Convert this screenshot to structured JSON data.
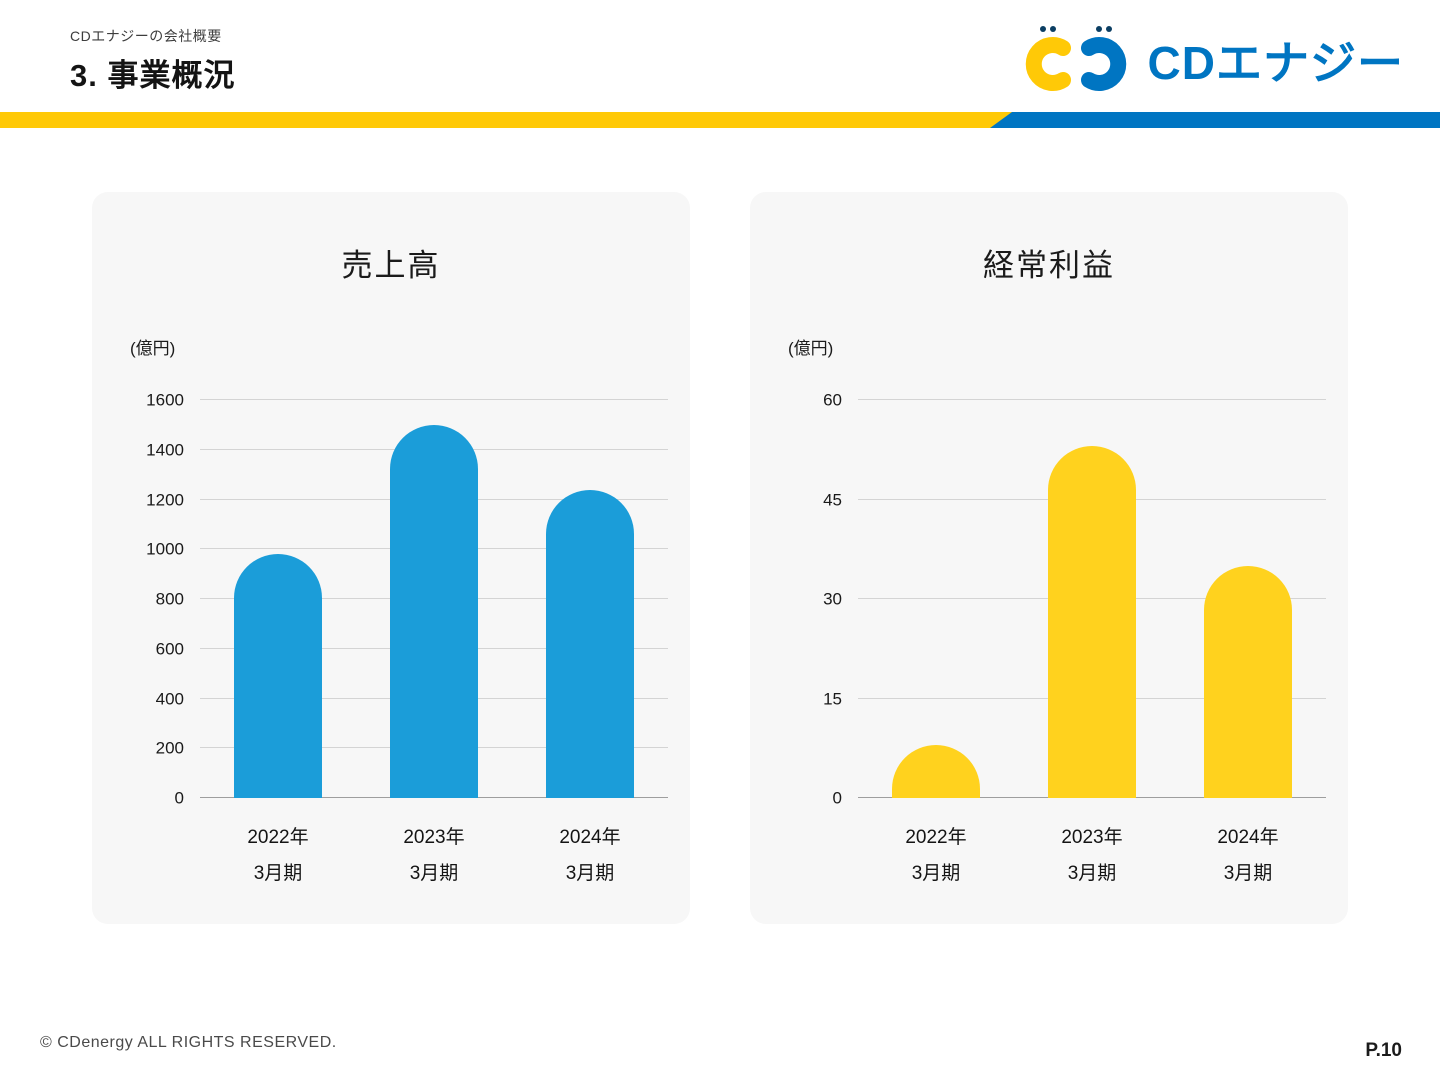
{
  "header": {
    "eyebrow": "CDエナジーの会社概要",
    "title": "3. 事業概況",
    "logo_text": "CDエナジー"
  },
  "footer": {
    "copyright": "© CDenergy ALL RIGHTS RESERVED.",
    "page_number": "P.10"
  },
  "colors": {
    "band_yellow": "#FFC907",
    "band_blue": "#0075C2",
    "bar_blue": "#1B9DD9",
    "bar_yellow": "#FFD21E",
    "card_bg": "#F7F7F7"
  },
  "chart_data": [
    {
      "type": "bar",
      "title": "売上高",
      "unit_label": "(億円)",
      "categories": [
        {
          "year": "2022年",
          "period": "3月期"
        },
        {
          "year": "2023年",
          "period": "3月期"
        },
        {
          "year": "2024年",
          "period": "3月期"
        }
      ],
      "values": [
        980,
        1500,
        1240
      ],
      "ylim": [
        0,
        1600
      ],
      "ytick_step": 200,
      "bar_color": "#1B9DD9",
      "legend": "none",
      "grid": "horizontal"
    },
    {
      "type": "bar",
      "title": "経常利益",
      "unit_label": "(億円)",
      "categories": [
        {
          "year": "2022年",
          "period": "3月期"
        },
        {
          "year": "2023年",
          "period": "3月期"
        },
        {
          "year": "2024年",
          "period": "3月期"
        }
      ],
      "values": [
        8,
        53,
        35
      ],
      "ylim": [
        0,
        60
      ],
      "ytick_step": 15,
      "bar_color": "#FFD21E",
      "legend": "none",
      "grid": "horizontal"
    }
  ]
}
